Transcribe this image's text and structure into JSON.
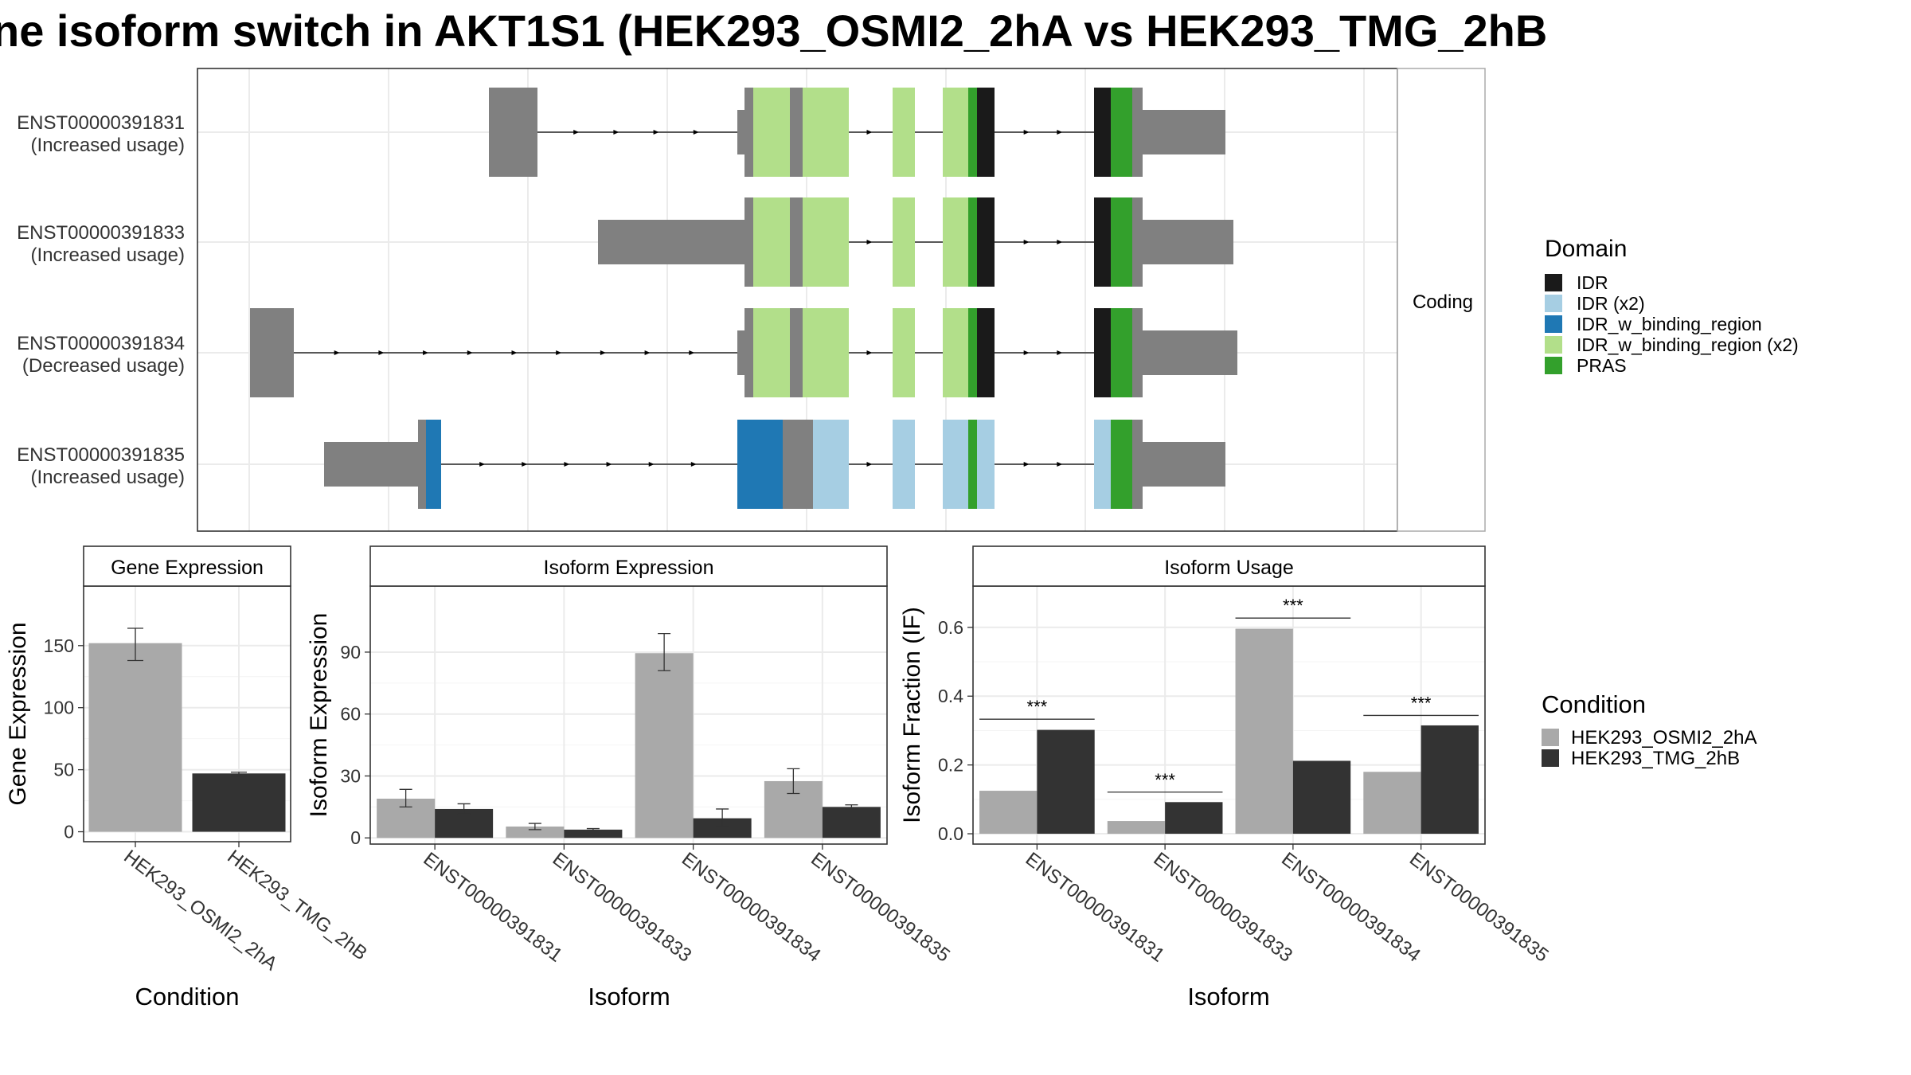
{
  "title": "ne isoform switch in AKT1S1 (HEK293_OSMI2_2hA vs HEK293_TMG_2hB",
  "colors": {
    "IDR": "#1a1a1a",
    "IDR (x2)": "#a6cee3",
    "IDR_w_binding_region": "#1f78b4",
    "IDR_w_binding_region (x2)": "#b2df8a",
    "PRAS": "#33a02c",
    "exon": "#808080",
    "cond_a": "#a9a9a9",
    "cond_b": "#333333"
  },
  "structure": {
    "facet_label": "Coding",
    "legend_title": "Domain",
    "legend_items": [
      "IDR",
      "IDR (x2)",
      "IDR_w_binding_region",
      "IDR_w_binding_region (x2)",
      "PRAS"
    ],
    "transcripts": [
      {
        "id": "ENST00000391831",
        "note": "(Increased usage)",
        "segments": [
          {
            "s": 0.3,
            "e": 0.361,
            "t": "exon"
          },
          {
            "s": 0.612,
            "e": 0.621,
            "t": "utr"
          },
          {
            "s": 0.621,
            "e": 0.632,
            "t": "exon"
          },
          {
            "s": 0.632,
            "e": 0.678,
            "t": "IDR_w_binding_region (x2)"
          },
          {
            "s": 0.678,
            "e": 0.694,
            "t": "exon"
          },
          {
            "s": 0.694,
            "e": 0.752,
            "t": "IDR_w_binding_region (x2)"
          },
          {
            "s": 0.807,
            "e": 0.835,
            "t": "IDR_w_binding_region (x2)"
          },
          {
            "s": 0.87,
            "e": 0.902,
            "t": "IDR_w_binding_region (x2)"
          },
          {
            "s": 0.902,
            "e": 0.913,
            "t": "PRAS"
          },
          {
            "s": 0.913,
            "e": 0.935,
            "t": "IDR"
          },
          {
            "s": 1.06,
            "e": 1.081,
            "t": "IDR"
          },
          {
            "s": 1.081,
            "e": 1.108,
            "t": "PRAS"
          },
          {
            "s": 1.108,
            "e": 1.121,
            "t": "exon"
          },
          {
            "s": 1.121,
            "e": 1.225,
            "t": "utr"
          }
        ]
      },
      {
        "id": "ENST00000391833",
        "note": "(Increased usage)",
        "segments": [
          {
            "s": 0.437,
            "e": 0.621,
            "t": "utr"
          },
          {
            "s": 0.621,
            "e": 0.632,
            "t": "exon"
          },
          {
            "s": 0.632,
            "e": 0.678,
            "t": "IDR_w_binding_region (x2)"
          },
          {
            "s": 0.678,
            "e": 0.694,
            "t": "exon"
          },
          {
            "s": 0.694,
            "e": 0.752,
            "t": "IDR_w_binding_region (x2)"
          },
          {
            "s": 0.807,
            "e": 0.835,
            "t": "IDR_w_binding_region (x2)"
          },
          {
            "s": 0.87,
            "e": 0.902,
            "t": "IDR_w_binding_region (x2)"
          },
          {
            "s": 0.902,
            "e": 0.913,
            "t": "PRAS"
          },
          {
            "s": 0.913,
            "e": 0.935,
            "t": "IDR"
          },
          {
            "s": 1.06,
            "e": 1.081,
            "t": "IDR"
          },
          {
            "s": 1.081,
            "e": 1.108,
            "t": "PRAS"
          },
          {
            "s": 1.108,
            "e": 1.121,
            "t": "exon"
          },
          {
            "s": 1.121,
            "e": 1.235,
            "t": "utr"
          }
        ]
      },
      {
        "id": "ENST00000391834",
        "note": "(Decreased usage)",
        "segments": [
          {
            "s": 0.0,
            "e": 0.055,
            "t": "exon"
          },
          {
            "s": 0.612,
            "e": 0.621,
            "t": "utr"
          },
          {
            "s": 0.621,
            "e": 0.632,
            "t": "exon"
          },
          {
            "s": 0.632,
            "e": 0.678,
            "t": "IDR_w_binding_region (x2)"
          },
          {
            "s": 0.678,
            "e": 0.694,
            "t": "exon"
          },
          {
            "s": 0.694,
            "e": 0.752,
            "t": "IDR_w_binding_region (x2)"
          },
          {
            "s": 0.807,
            "e": 0.835,
            "t": "IDR_w_binding_region (x2)"
          },
          {
            "s": 0.87,
            "e": 0.902,
            "t": "IDR_w_binding_region (x2)"
          },
          {
            "s": 0.902,
            "e": 0.913,
            "t": "PRAS"
          },
          {
            "s": 0.913,
            "e": 0.935,
            "t": "IDR"
          },
          {
            "s": 1.06,
            "e": 1.081,
            "t": "IDR"
          },
          {
            "s": 1.081,
            "e": 1.108,
            "t": "PRAS"
          },
          {
            "s": 1.108,
            "e": 1.121,
            "t": "exon"
          },
          {
            "s": 1.121,
            "e": 1.24,
            "t": "utr"
          }
        ]
      },
      {
        "id": "ENST00000391835",
        "note": "(Increased usage)",
        "segments": [
          {
            "s": 0.093,
            "e": 0.211,
            "t": "utr"
          },
          {
            "s": 0.211,
            "e": 0.221,
            "t": "exon"
          },
          {
            "s": 0.221,
            "e": 0.24,
            "t": "IDR_w_binding_region"
          },
          {
            "s": 0.612,
            "e": 0.669,
            "t": "IDR_w_binding_region"
          },
          {
            "s": 0.669,
            "e": 0.707,
            "t": "exon"
          },
          {
            "s": 0.707,
            "e": 0.752,
            "t": "IDR (x2)"
          },
          {
            "s": 0.807,
            "e": 0.835,
            "t": "IDR (x2)"
          },
          {
            "s": 0.87,
            "e": 0.902,
            "t": "IDR (x2)"
          },
          {
            "s": 0.902,
            "e": 0.913,
            "t": "PRAS"
          },
          {
            "s": 0.913,
            "e": 0.935,
            "t": "IDR (x2)"
          },
          {
            "s": 1.06,
            "e": 1.081,
            "t": "IDR (x2)"
          },
          {
            "s": 1.081,
            "e": 1.108,
            "t": "PRAS"
          },
          {
            "s": 1.108,
            "e": 1.121,
            "t": "exon"
          },
          {
            "s": 1.121,
            "e": 1.225,
            "t": "utr"
          }
        ]
      }
    ]
  },
  "conditions": [
    "HEK293_OSMI2_2hA",
    "HEK293_TMG_2hB"
  ],
  "condition_legend_title": "Condition",
  "chart_data": [
    {
      "type": "bar",
      "title": "Gene Expression",
      "xlabel": "Condition",
      "ylabel": "Gene Expression",
      "categories": [
        "HEK293_OSMI2_2hA",
        "HEK293_TMG_2hB"
      ],
      "values": [
        152,
        47
      ],
      "errors": [
        [
          138,
          164
        ],
        [
          45,
          48
        ]
      ],
      "ylim": [
        -8,
        198
      ],
      "yticks": [
        0,
        50,
        100,
        150
      ]
    },
    {
      "type": "bar",
      "title": "Isoform Expression",
      "xlabel": "Isoform",
      "ylabel": "Isoform Expression",
      "categories": [
        "ENST00000391831",
        "ENST00000391833",
        "ENST00000391834",
        "ENST00000391835"
      ],
      "series": [
        {
          "name": "HEK293_OSMI2_2hA",
          "values": [
            19,
            5.5,
            89.5,
            27.5
          ],
          "errors": [
            [
              15,
              23.5
            ],
            [
              4,
              7
            ],
            [
              81,
              99
            ],
            [
              21.5,
              33.5
            ]
          ]
        },
        {
          "name": "HEK293_TMG_2hB",
          "values": [
            14,
            4,
            9.5,
            15
          ],
          "errors": [
            [
              11.5,
              16.5
            ],
            [
              3.5,
              4.5
            ],
            [
              5.5,
              14
            ],
            [
              14,
              16
            ]
          ]
        }
      ],
      "ylim": [
        -3,
        122
      ],
      "yticks": [
        0,
        30,
        60,
        90
      ]
    },
    {
      "type": "bar",
      "title": "Isoform Usage",
      "xlabel": "Isoform",
      "ylabel": "Isoform Fraction (IF)",
      "categories": [
        "ENST00000391831",
        "ENST00000391833",
        "ENST00000391834",
        "ENST00000391835"
      ],
      "series": [
        {
          "name": "HEK293_OSMI2_2hA",
          "values": [
            0.125,
            0.037,
            0.596,
            0.18
          ]
        },
        {
          "name": "HEK293_TMG_2hB",
          "values": [
            0.302,
            0.092,
            0.212,
            0.315
          ]
        }
      ],
      "significance": [
        "***",
        "***",
        "***",
        "***"
      ],
      "sig_y": [
        0.333,
        0.121,
        0.627,
        0.344
      ],
      "ylim": [
        -0.03,
        0.72
      ],
      "yticks": [
        0.0,
        0.2,
        0.4,
        0.6
      ],
      "ytick_labels": [
        "0.0",
        "0.2",
        "0.4",
        "0.6"
      ]
    }
  ]
}
